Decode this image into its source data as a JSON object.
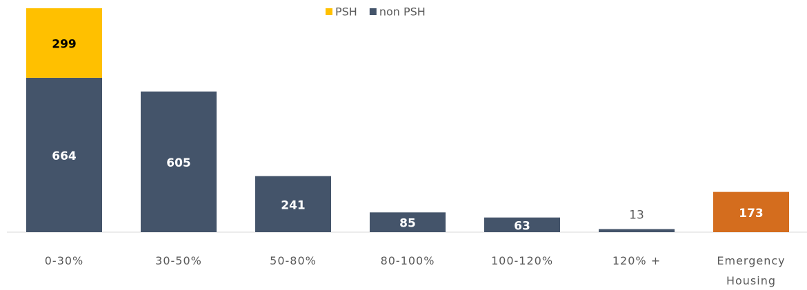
{
  "chart_data": {
    "type": "stacked_bar",
    "categories": [
      "0-30%",
      "30-50%",
      "50-80%",
      "80-100%",
      "100-120%",
      "120% +",
      "Emergency Housing"
    ],
    "series": [
      {
        "name": "non PSH",
        "color": "#44546A",
        "point_colors": [
          null,
          null,
          null,
          null,
          null,
          null,
          "#D46D1E"
        ],
        "values": [
          664,
          605,
          241,
          85,
          63,
          13,
          173
        ]
      },
      {
        "name": "PSH",
        "color": "#FFC000",
        "values": [
          299,
          null,
          null,
          null,
          null,
          null,
          null
        ]
      }
    ],
    "legend_order": [
      1,
      0
    ],
    "legend": "top"
  }
}
